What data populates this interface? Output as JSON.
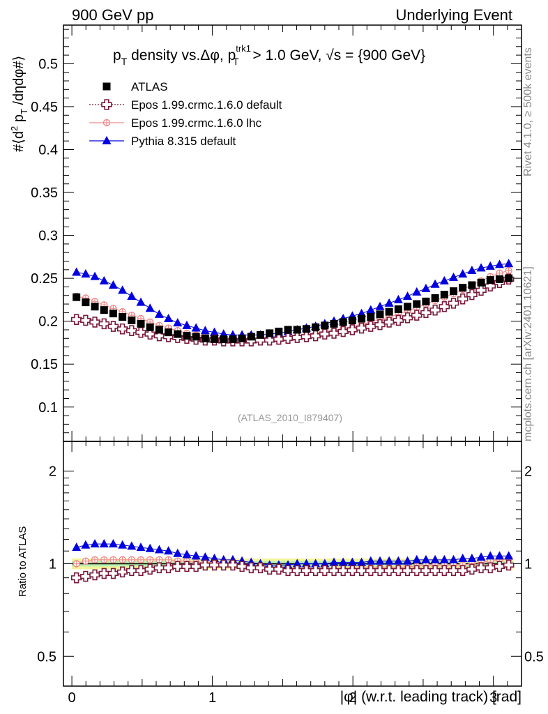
{
  "header": {
    "left": "900 GeV pp",
    "right": "Underlying Event"
  },
  "side_labels": {
    "rivet": "Rivet 4.1.0, ≥ 500k events",
    "mcplots": "mcplots.cern.ch [arXiv:2401.10621]"
  },
  "watermark": "(ATLAS_2010_I879407)",
  "title": {
    "p": "p",
    "sub_T": "T",
    "mid": " density vs.Δφ, p",
    "sup": "trk1",
    "tail": " > 1.0 GeV, ",
    "sqrt": "√s",
    "end": " = {900 GeV}"
  },
  "colors": {
    "atlas": "#000000",
    "epos_default": "#7a1a3a",
    "epos_lhc": "#f08a8a",
    "pythia": "#0000e0",
    "band_green": "#b8f0b0",
    "band_yellow": "#f4f49a"
  },
  "chart_data": [
    {
      "type": "scatter",
      "panel": "main",
      "ylabel": "#⟨d² p_T /dηdφ#⟩",
      "ylim": [
        0.06,
        0.545
      ],
      "xlim": [
        -0.06,
        3.2
      ],
      "y_ticks": [
        "0.1",
        "0.15",
        "0.2",
        "0.25",
        "0.3",
        "0.35",
        "0.4",
        "0.45",
        "0.5"
      ],
      "legend": [
        "ATLAS",
        "Epos 1.99.crmc.1.6.0 default",
        "Epos 1.99.crmc.1.6.0 lhc",
        "Pythia 8.315 default"
      ],
      "x": [
        0.0327,
        0.0982,
        0.1636,
        0.2291,
        0.2945,
        0.36,
        0.4254,
        0.4909,
        0.5563,
        0.6218,
        0.6872,
        0.7527,
        0.8181,
        0.8836,
        0.949,
        1.0145,
        1.0799,
        1.1454,
        1.2108,
        1.2763,
        1.3417,
        1.4072,
        1.4726,
        1.5381,
        1.6035,
        1.669,
        1.7344,
        1.7999,
        1.8653,
        1.9308,
        1.9962,
        2.0617,
        2.1271,
        2.1926,
        2.258,
        2.3235,
        2.3889,
        2.4544,
        2.5198,
        2.5853,
        2.6507,
        2.7162,
        2.7816,
        2.8471,
        2.9125,
        2.978,
        3.0434,
        3.1089
      ],
      "series": [
        {
          "name": "ATLAS",
          "values": [
            0.228,
            0.222,
            0.217,
            0.213,
            0.209,
            0.205,
            0.201,
            0.197,
            0.193,
            0.19,
            0.187,
            0.185,
            0.183,
            0.182,
            0.18,
            0.179,
            0.179,
            0.179,
            0.18,
            0.182,
            0.184,
            0.186,
            0.188,
            0.19,
            0.19,
            0.191,
            0.193,
            0.195,
            0.197,
            0.199,
            0.201,
            0.203,
            0.205,
            0.208,
            0.211,
            0.214,
            0.217,
            0.22,
            0.223,
            0.227,
            0.231,
            0.235,
            0.239,
            0.242,
            0.245,
            0.248,
            0.249,
            0.25
          ]
        },
        {
          "name": "Epos 1.99.crmc.1.6.0 default",
          "values": [
            0.202,
            0.201,
            0.199,
            0.197,
            0.194,
            0.191,
            0.189,
            0.187,
            0.185,
            0.183,
            0.182,
            0.181,
            0.18,
            0.179,
            0.178,
            0.178,
            0.177,
            0.177,
            0.177,
            0.177,
            0.178,
            0.178,
            0.179,
            0.18,
            0.181,
            0.182,
            0.183,
            0.185,
            0.186,
            0.188,
            0.19,
            0.192,
            0.194,
            0.196,
            0.199,
            0.201,
            0.204,
            0.207,
            0.21,
            0.213,
            0.217,
            0.221,
            0.226,
            0.231,
            0.236,
            0.241,
            0.245,
            0.249
          ]
        },
        {
          "name": "Epos 1.99.crmc.1.6.0 lhc",
          "values": [
            0.229,
            0.227,
            0.223,
            0.219,
            0.215,
            0.211,
            0.207,
            0.203,
            0.199,
            0.195,
            0.192,
            0.189,
            0.186,
            0.184,
            0.182,
            0.181,
            0.18,
            0.179,
            0.179,
            0.179,
            0.179,
            0.179,
            0.18,
            0.181,
            0.182,
            0.183,
            0.185,
            0.187,
            0.189,
            0.191,
            0.193,
            0.196,
            0.199,
            0.202,
            0.205,
            0.208,
            0.212,
            0.216,
            0.22,
            0.224,
            0.228,
            0.232,
            0.237,
            0.242,
            0.247,
            0.252,
            0.256,
            0.259
          ]
        },
        {
          "name": "Pythia 8.315 default",
          "values": [
            0.257,
            0.255,
            0.252,
            0.247,
            0.242,
            0.236,
            0.229,
            0.222,
            0.215,
            0.208,
            0.203,
            0.198,
            0.195,
            0.192,
            0.189,
            0.187,
            0.185,
            0.184,
            0.184,
            0.184,
            0.184,
            0.185,
            0.186,
            0.188,
            0.19,
            0.192,
            0.194,
            0.197,
            0.2,
            0.203,
            0.206,
            0.209,
            0.213,
            0.217,
            0.221,
            0.225,
            0.229,
            0.234,
            0.238,
            0.243,
            0.247,
            0.251,
            0.255,
            0.259,
            0.262,
            0.264,
            0.266,
            0.267
          ]
        }
      ]
    },
    {
      "type": "scatter",
      "panel": "ratio",
      "ylabel": "Ratio to ATLAS",
      "xlabel": "|φ| (w.r.t. leading track) [rad]",
      "y_scale": "log",
      "ylim": [
        0.4,
        2.5
      ],
      "xlim": [
        -0.06,
        3.2
      ],
      "y_ticks": [
        "0.5",
        "1",
        "2"
      ],
      "x_ticks": [
        "0",
        "1",
        "2",
        "3"
      ],
      "band": {
        "green_half_width": 0.02,
        "yellow_half_width": 0.04
      },
      "x": [
        0.0327,
        0.0982,
        0.1636,
        0.2291,
        0.2945,
        0.36,
        0.4254,
        0.4909,
        0.5563,
        0.6218,
        0.6872,
        0.7527,
        0.8181,
        0.8836,
        0.949,
        1.0145,
        1.0799,
        1.1454,
        1.2108,
        1.2763,
        1.3417,
        1.4072,
        1.4726,
        1.5381,
        1.6035,
        1.669,
        1.7344,
        1.7999,
        1.8653,
        1.9308,
        1.9962,
        2.0617,
        2.1271,
        2.1926,
        2.258,
        2.3235,
        2.3889,
        2.4544,
        2.5198,
        2.5853,
        2.6507,
        2.7162,
        2.7816,
        2.8471,
        2.9125,
        2.978,
        3.0434,
        3.1089
      ],
      "series": [
        {
          "name": "Epos 1.99.crmc.1.6.0 default",
          "values": [
            0.9,
            0.91,
            0.92,
            0.93,
            0.93,
            0.94,
            0.95,
            0.95,
            0.96,
            0.97,
            0.97,
            0.98,
            0.98,
            0.98,
            0.99,
            0.99,
            0.99,
            0.99,
            0.98,
            0.97,
            0.97,
            0.96,
            0.96,
            0.95,
            0.95,
            0.95,
            0.95,
            0.95,
            0.95,
            0.95,
            0.95,
            0.95,
            0.95,
            0.95,
            0.95,
            0.95,
            0.95,
            0.95,
            0.95,
            0.95,
            0.95,
            0.95,
            0.95,
            0.96,
            0.97,
            0.97,
            0.98,
            0.99
          ]
        },
        {
          "name": "Epos 1.99.crmc.1.6.0 lhc",
          "values": [
            1.0,
            1.02,
            1.03,
            1.03,
            1.03,
            1.03,
            1.03,
            1.03,
            1.03,
            1.03,
            1.03,
            1.02,
            1.02,
            1.01,
            1.01,
            1.01,
            1.01,
            1.0,
            0.99,
            0.98,
            0.97,
            0.96,
            0.96,
            0.95,
            0.96,
            0.96,
            0.96,
            0.96,
            0.96,
            0.96,
            0.96,
            0.97,
            0.97,
            0.97,
            0.97,
            0.97,
            0.98,
            0.98,
            0.99,
            0.99,
            0.99,
            0.99,
            0.99,
            1.0,
            1.01,
            1.02,
            1.03,
            1.04
          ]
        },
        {
          "name": "Pythia 8.315 default",
          "values": [
            1.13,
            1.15,
            1.16,
            1.16,
            1.16,
            1.15,
            1.14,
            1.13,
            1.12,
            1.11,
            1.1,
            1.08,
            1.07,
            1.06,
            1.05,
            1.04,
            1.03,
            1.03,
            1.02,
            1.01,
            1.0,
            0.99,
            0.99,
            0.99,
            1.0,
            1.0,
            1.0,
            1.0,
            1.01,
            1.01,
            1.01,
            1.01,
            1.02,
            1.02,
            1.02,
            1.02,
            1.02,
            1.03,
            1.03,
            1.03,
            1.03,
            1.03,
            1.04,
            1.04,
            1.05,
            1.06,
            1.06,
            1.06
          ]
        }
      ]
    }
  ]
}
